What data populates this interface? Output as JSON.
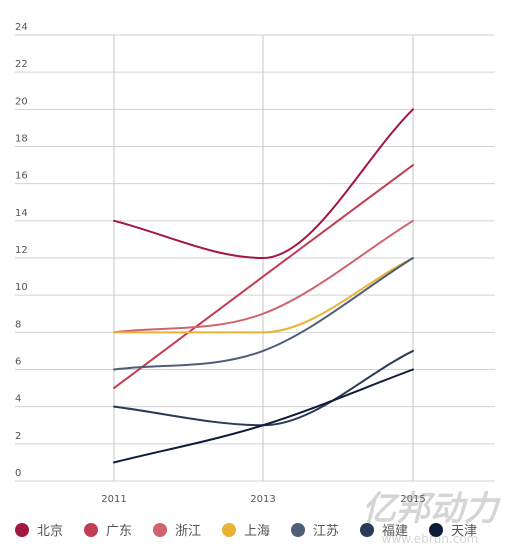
{
  "chart_data": {
    "type": "line",
    "x": [
      "2011",
      "2013",
      "2015"
    ],
    "ylim": [
      0,
      24
    ],
    "yticks": [
      0,
      2,
      4,
      6,
      8,
      10,
      12,
      14,
      16,
      18,
      20,
      22,
      24
    ],
    "grid": true,
    "legend_position": "bottom",
    "series": [
      {
        "name": "北京",
        "values": [
          14,
          12,
          20
        ],
        "color": "#a3173e"
      },
      {
        "name": "广东",
        "values": [
          5,
          11,
          17
        ],
        "color": "#c23c54"
      },
      {
        "name": "浙江",
        "values": [
          8,
          9,
          14
        ],
        "color": "#cf6470"
      },
      {
        "name": "上海",
        "values": [
          8,
          8,
          12
        ],
        "color": "#e9b233"
      },
      {
        "name": "江苏",
        "values": [
          6,
          7,
          12
        ],
        "color": "#4f5e78"
      },
      {
        "name": "福建",
        "values": [
          4,
          3,
          7
        ],
        "color": "#2a3b57"
      },
      {
        "name": "天津",
        "values": [
          1,
          3,
          6
        ],
        "color": "#0e1c3a"
      }
    ]
  },
  "watermark": {
    "title": "亿邦动力",
    "url": "www.ebrun.com"
  }
}
